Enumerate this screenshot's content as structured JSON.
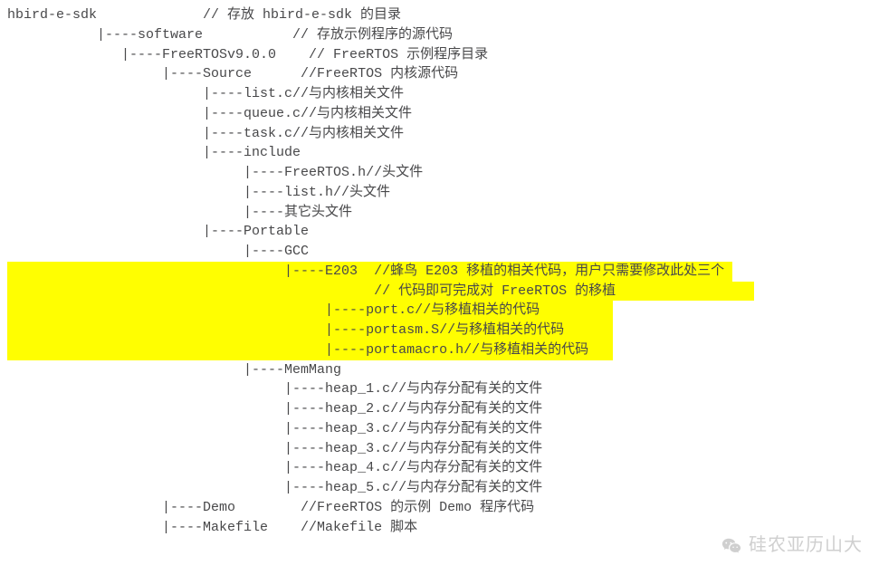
{
  "lines": [
    {
      "hl": false,
      "text": "hbird-e-sdk             // 存放 hbird-e-sdk 的目录"
    },
    {
      "hl": false,
      "text": "           |----software           // 存放示例程序的源代码"
    },
    {
      "hl": false,
      "text": "              |----FreeRTOSv9.0.0    // FreeRTOS 示例程序目录"
    },
    {
      "hl": false,
      "text": "                   |----Source      //FreeRTOS 内核源代码"
    },
    {
      "hl": false,
      "text": "                        |----list.c//与内核相关文件"
    },
    {
      "hl": false,
      "text": "                        |----queue.c//与内核相关文件"
    },
    {
      "hl": false,
      "text": "                        |----task.c//与内核相关文件"
    },
    {
      "hl": false,
      "text": "                        |----include"
    },
    {
      "hl": false,
      "text": "                             |----FreeRTOS.h//头文件"
    },
    {
      "hl": false,
      "text": "                             |----list.h//头文件"
    },
    {
      "hl": false,
      "text": "                             |----其它头文件"
    },
    {
      "hl": false,
      "text": "                        |----Portable"
    },
    {
      "hl": false,
      "text": "                             |----GCC"
    },
    {
      "hl": true,
      "text": "                                  |----E203  //蜂鸟 E203 移植的相关代码，用户只需要修改此处三个 "
    },
    {
      "hl": true,
      "text": "                                             // 代码即可完成对 FreeRTOS 的移植                 "
    },
    {
      "hl": true,
      "text": "                                       |----port.c//与移植相关的代码         "
    },
    {
      "hl": true,
      "text": "                                       |----portasm.S//与移植相关的代码      "
    },
    {
      "hl": true,
      "text": "                                       |----portamacro.h//与移植相关的代码   "
    },
    {
      "hl": false,
      "text": "                             |----MemMang"
    },
    {
      "hl": false,
      "text": "                                  |----heap_1.c//与内存分配有关的文件"
    },
    {
      "hl": false,
      "text": "                                  |----heap_2.c//与内存分配有关的文件"
    },
    {
      "hl": false,
      "text": "                                  |----heap_3.c//与内存分配有关的文件"
    },
    {
      "hl": false,
      "text": "                                  |----heap_3.c//与内存分配有关的文件"
    },
    {
      "hl": false,
      "text": "                                  |----heap_4.c//与内存分配有关的文件"
    },
    {
      "hl": false,
      "text": "                                  |----heap_5.c//与内存分配有关的文件"
    },
    {
      "hl": false,
      "text": "                   |----Demo        //FreeRTOS 的示例 Demo 程序代码"
    },
    {
      "hl": false,
      "text": "                   |----Makefile    //Makefile 脚本"
    }
  ],
  "watermark": {
    "text": "硅农亚历山大"
  },
  "colors": {
    "highlight_bg": "#fffe01",
    "text": "#48484a",
    "background": "#ffffff",
    "watermark": "#bfbfbf"
  },
  "font": {
    "family": "Courier New, monospace",
    "size_pt": 11,
    "line_height": 1.45
  }
}
